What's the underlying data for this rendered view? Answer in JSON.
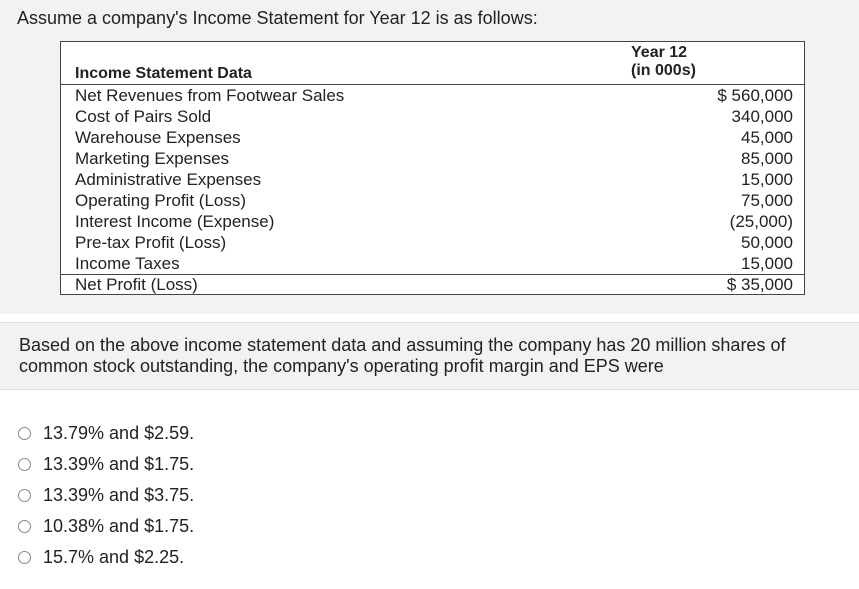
{
  "intro": "Assume a company's Income Statement for Year 12 is as follows:",
  "table": {
    "label_header": "Income Statement Data",
    "year_header_line1": "Year 12",
    "year_header_line2": "(in 000s)",
    "rows": [
      {
        "name": "Net Revenues from Footwear Sales",
        "value": "$ 560,000"
      },
      {
        "name": "Cost of Pairs Sold",
        "value": "340,000"
      },
      {
        "name": "Warehouse Expenses",
        "value": "45,000"
      },
      {
        "name": "Marketing Expenses",
        "value": "85,000"
      },
      {
        "name": "Administrative Expenses",
        "value": "15,000"
      },
      {
        "name": "Operating Profit (Loss)",
        "value": "75,000"
      },
      {
        "name": "Interest Income (Expense)",
        "value": "(25,000)"
      },
      {
        "name": "Pre-tax Profit (Loss)",
        "value": "50,000"
      },
      {
        "name": "Income Taxes",
        "value": "15,000"
      },
      {
        "name": "Net Profit (Loss)",
        "value": "$ 35,000"
      }
    ]
  },
  "question": "Based on the above income statement data and assuming the company has 20 million shares of common stock outstanding, the company's operating profit margin and EPS were",
  "options": [
    "13.79% and $2.59.",
    "13.39% and $1.75.",
    "13.39% and $3.75.",
    "10.38% and $1.75.",
    "15.7% and $2.25."
  ]
}
